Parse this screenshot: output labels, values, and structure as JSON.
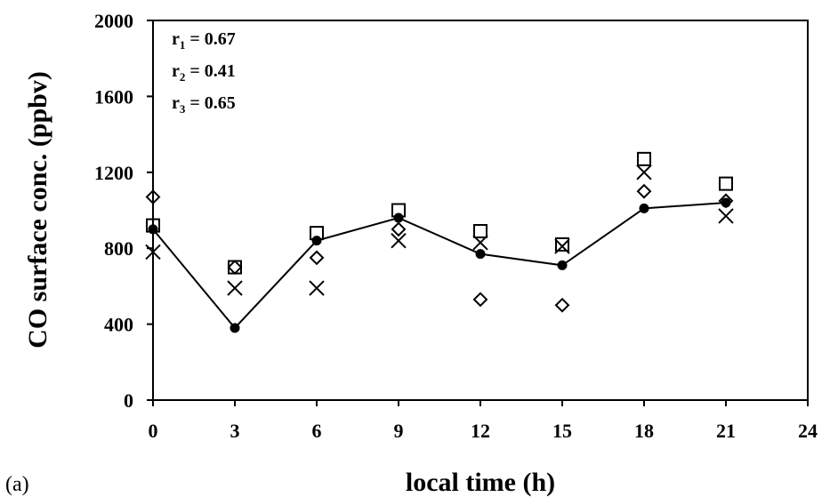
{
  "panel_label": "(a)",
  "chart_data": {
    "type": "scatter",
    "xlabel": "local time (h)",
    "ylabel": "CO surface conc. (ppbv)",
    "xlim": [
      0,
      24
    ],
    "ylim": [
      0,
      2000
    ],
    "xticks": [
      "0",
      "3",
      "6",
      "9",
      "12",
      "15",
      "18",
      "21",
      "24"
    ],
    "yticks": [
      "0",
      "400",
      "800",
      "1200",
      "1600",
      "2000"
    ],
    "grid": false,
    "annotations": [
      {
        "var": "r",
        "sub": "1",
        "rest": " = 0.67"
      },
      {
        "var": "r",
        "sub": "2",
        "rest": " = 0.41"
      },
      {
        "var": "r",
        "sub": "3",
        "rest": " = 0.65"
      }
    ],
    "series": [
      {
        "marker": "filled-circle-line",
        "points": [
          [
            0,
            900
          ],
          [
            3,
            380
          ],
          [
            6,
            840
          ],
          [
            9,
            960
          ],
          [
            12,
            770
          ],
          [
            15,
            710
          ],
          [
            18,
            1010
          ],
          [
            21,
            1040
          ]
        ]
      },
      {
        "marker": "open-square",
        "points": [
          [
            0,
            920
          ],
          [
            3,
            700
          ],
          [
            6,
            880
          ],
          [
            9,
            1000
          ],
          [
            12,
            890
          ],
          [
            15,
            820
          ],
          [
            18,
            1270
          ],
          [
            21,
            1140
          ]
        ]
      },
      {
        "marker": "open-diamond",
        "points": [
          [
            0,
            1070
          ],
          [
            3,
            700
          ],
          [
            6,
            750
          ],
          [
            9,
            900
          ],
          [
            12,
            530
          ],
          [
            15,
            500
          ],
          [
            18,
            1100
          ],
          [
            21,
            1050
          ]
        ]
      },
      {
        "marker": "x-cross",
        "points": [
          [
            0,
            780
          ],
          [
            3,
            590
          ],
          [
            6,
            590
          ],
          [
            9,
            840
          ],
          [
            12,
            830
          ],
          [
            15,
            810
          ],
          [
            18,
            1200
          ],
          [
            21,
            970
          ]
        ]
      }
    ]
  }
}
